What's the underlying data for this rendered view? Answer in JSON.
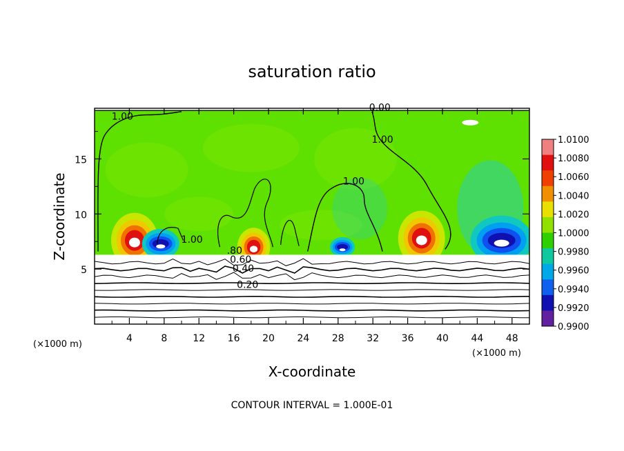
{
  "chart_data": {
    "type": "heatmap",
    "title": "saturation ratio",
    "xlabel": "X-coordinate",
    "ylabel": "Z-coordinate",
    "x_unit_left": "(×1000 m)",
    "x_unit_right": "(×1000 m)",
    "footer": "CONTOUR INTERVAL = 1.000E-01",
    "xlim": [
      0,
      50
    ],
    "ylim": [
      0,
      19.6
    ],
    "x_ticks": [
      4,
      8,
      12,
      16,
      20,
      24,
      28,
      32,
      36,
      40,
      44,
      48
    ],
    "x_tick_labels": [
      "4",
      "8",
      "12",
      "16",
      "20",
      "24",
      "28",
      "32",
      "36",
      "40",
      "44",
      "48"
    ],
    "y_ticks": [
      5,
      10,
      15
    ],
    "y_tick_labels": [
      "5",
      "10",
      "15"
    ],
    "colorbar": {
      "values": [
        1.01,
        1.008,
        1.006,
        1.004,
        1.002,
        1.0,
        0.998,
        0.996,
        0.994,
        0.992,
        0.99
      ],
      "labels": [
        "1.0100",
        "1.0080",
        "1.0060",
        "1.0040",
        "1.0020",
        "1.0000",
        "0.9980",
        "0.9960",
        "0.9940",
        "0.9920",
        "0.9900"
      ],
      "colors": [
        "#f08080",
        "#e01010",
        "#f04000",
        "#f09000",
        "#e8e000",
        "#90e000",
        "#30d000",
        "#10c8a0",
        "#00a8e8",
        "#1060f0",
        "#1010b0",
        "#6020a0"
      ]
    },
    "contour_labels": [
      {
        "text": "1.00",
        "x": 3.2,
        "y": 18.7
      },
      {
        "text": "0.00",
        "x": 32.8,
        "y": 19.5
      },
      {
        "text": "1.00",
        "x": 33.1,
        "y": 16.6
      },
      {
        "text": "1.00",
        "x": 29.8,
        "y": 12.8
      },
      {
        "text": "1.00",
        "x": 11.2,
        "y": 7.5
      },
      {
        "text": ".80",
        "x": 16.1,
        "y": 6.5
      },
      {
        "text": "0.60",
        "x": 16.8,
        "y": 5.7
      },
      {
        "text": "0.40",
        "x": 17.1,
        "y": 4.9
      },
      {
        "text": "0.20",
        "x": 17.6,
        "y": 3.4
      }
    ],
    "contour_levels_lower": [
      0.1,
      0.2,
      0.3,
      0.4,
      0.5,
      0.6,
      0.7,
      0.8,
      0.9
    ],
    "hotspots": [
      {
        "x": 4.6,
        "y": 7.6,
        "amp": 1.0
      },
      {
        "x": 37.6,
        "y": 7.8,
        "amp": 1.0
      },
      {
        "x": 18.3,
        "y": 7.0,
        "amp": 0.7
      }
    ],
    "coldspots": [
      {
        "x": 46.8,
        "y": 7.6,
        "amp": 1.0
      },
      {
        "x": 7.6,
        "y": 7.3,
        "amp": 0.6
      },
      {
        "x": 28.5,
        "y": 7.0,
        "amp": 0.4
      }
    ]
  }
}
